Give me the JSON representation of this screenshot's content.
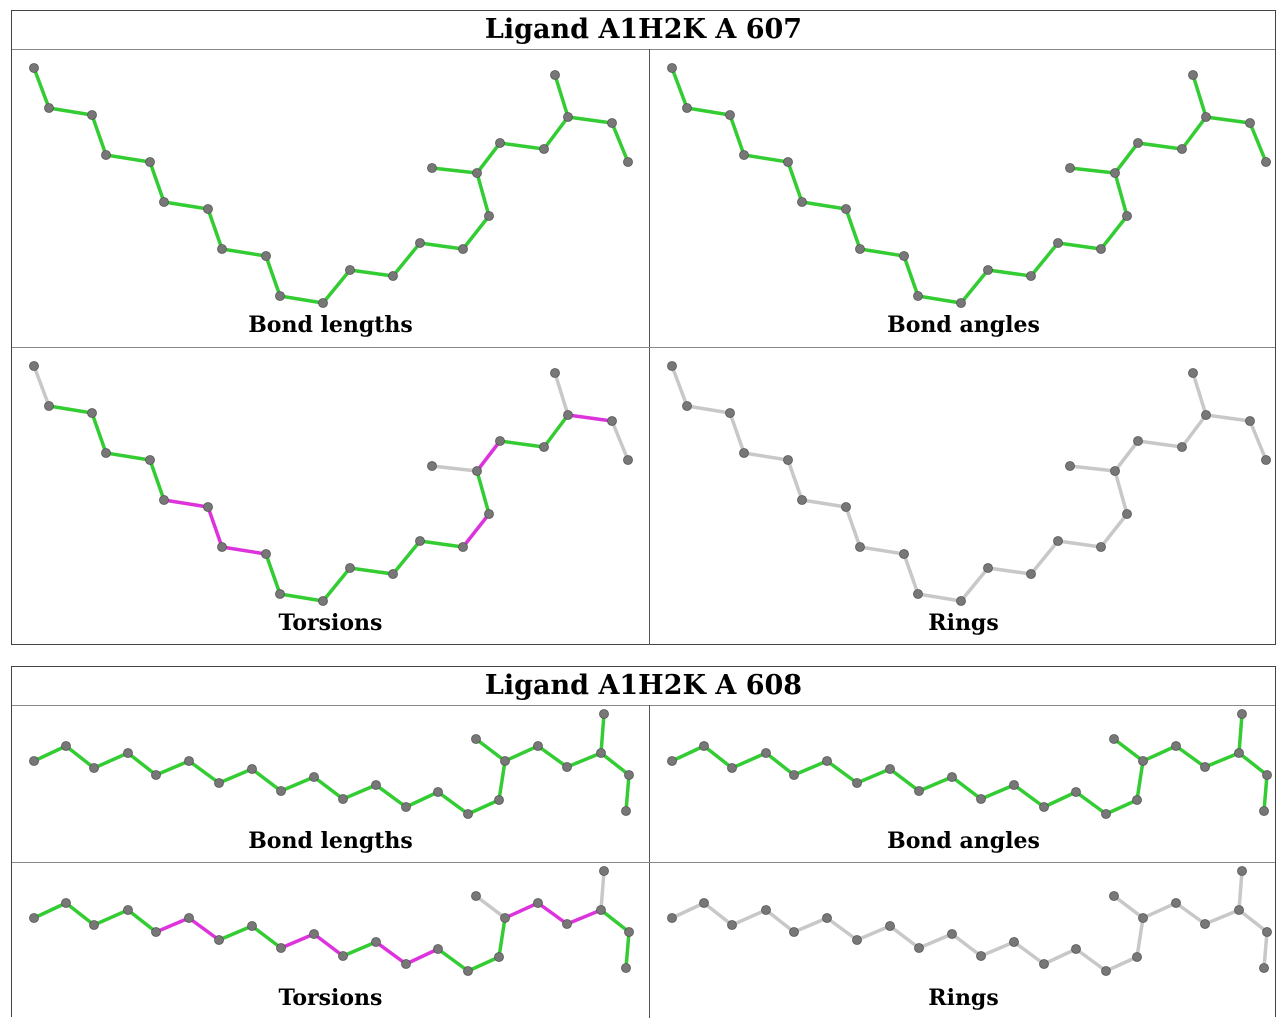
{
  "ligands": [
    {
      "title": "Ligand A1H2K A 607",
      "panels": [
        {
          "caption": "Bond lengths"
        },
        {
          "caption": "Bond angles"
        },
        {
          "caption": "Torsions"
        },
        {
          "caption": "Rings"
        }
      ]
    },
    {
      "title": "Ligand A1H2K A 608",
      "panels": [
        {
          "caption": "Bond lengths"
        },
        {
          "caption": "Bond angles"
        },
        {
          "caption": "Torsions"
        },
        {
          "caption": "Rings"
        }
      ]
    }
  ],
  "colors": {
    "ok": "#33cc33",
    "outlier": "#dd33dd",
    "neutral": "#c8c8c8",
    "atom": "#777777"
  }
}
